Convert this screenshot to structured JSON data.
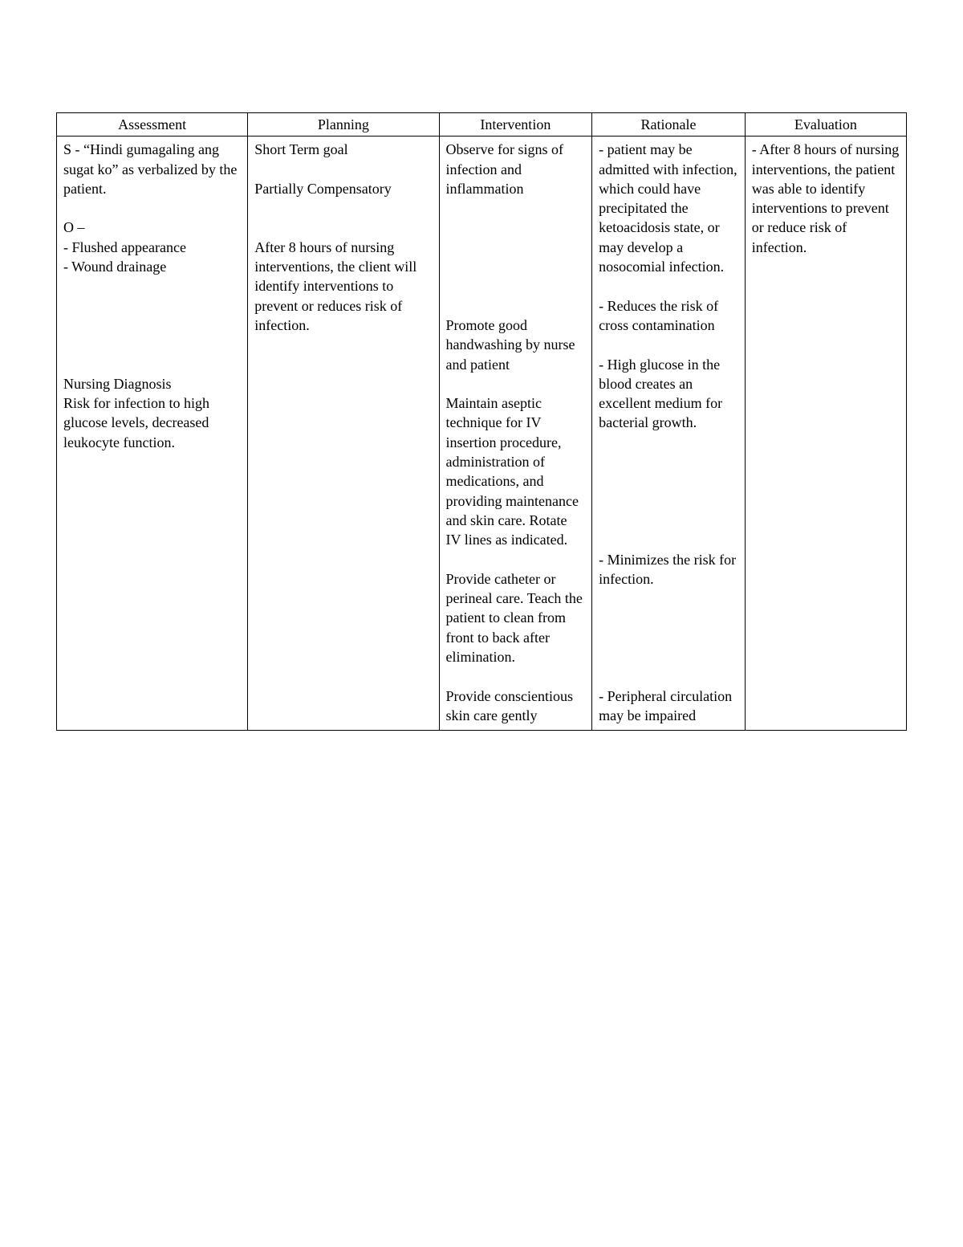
{
  "table": {
    "columns": {
      "assessment": "Assessment",
      "planning": "Planning",
      "intervention": "Intervention",
      "rationale": "Rationale",
      "evaluation": "Evaluation"
    },
    "assessment": {
      "s": "S - “Hindi gumagaling ang sugat ko” as verbalized by the patient.",
      "o_label": "O –",
      "o_item1": "- Flushed appearance",
      "o_item2": "- Wound drainage",
      "dx_heading": "Nursing Diagnosis",
      "dx": "Risk for infection to high glucose levels, decreased leukocyte function."
    },
    "planning": {
      "line1": "Short Term goal",
      "line2": "Partially Compensatory",
      "para": "After 8 hours of nursing interventions, the client will identify interventions to prevent or reduces risk of infection."
    },
    "intervention": {
      "i1": "Observe for signs of infection and inflammation",
      "i2": "Promote good handwashing by nurse and patient",
      "i3": "Maintain aseptic technique for IV insertion procedure, administration of medications, and providing maintenance and skin care. Rotate IV lines as indicated.",
      "i4": "Provide catheter or perineal care. Teach the patient to clean from front to back after elimination.",
      "i5": "Provide conscientious skin care gently"
    },
    "rationale": {
      "r1": "- patient may be admitted with infection, which could have precipitated the ketoacidosis state, or may develop a nosocomial infection.",
      "r2": "- Reduces the risk of cross contamination",
      "r3": "- High glucose in the blood creates an excellent medium for bacterial growth.",
      "r4": "- Minimizes the risk for infection.",
      "r5": "- Peripheral circulation may be impaired"
    },
    "evaluation": {
      "e1": "- After 8 hours of nursing interventions, the patient was able to identify interventions to prevent or reduce risk of infection."
    }
  },
  "style": {
    "background_color": "#ffffff",
    "border_color": "#000000",
    "text_color": "#000000",
    "font_family": "Times New Roman",
    "header_fontsize": 18,
    "body_fontsize": 18
  }
}
